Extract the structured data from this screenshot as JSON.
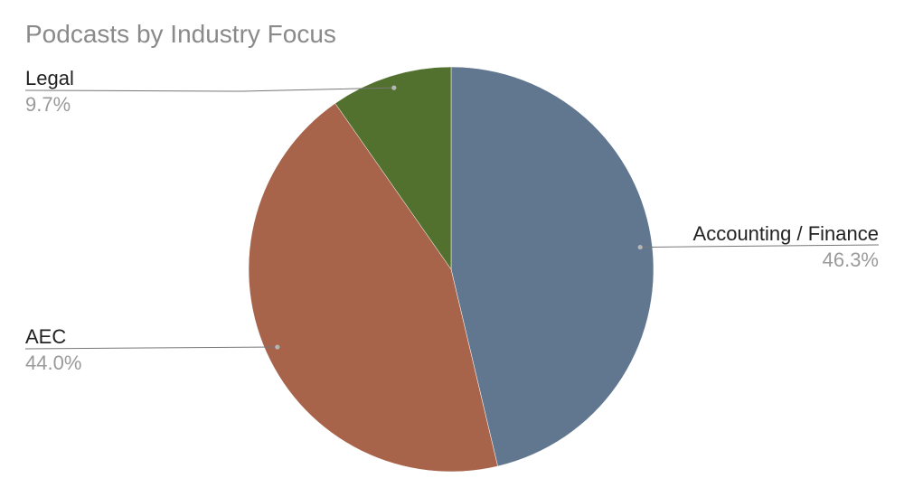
{
  "chart_data": {
    "type": "pie",
    "title": "Podcasts by Industry Focus",
    "slices": [
      {
        "label": "Accounting / Finance",
        "value": 46.3,
        "display": "46.3%",
        "color": "#61778f"
      },
      {
        "label": "AEC",
        "value": 44.0,
        "display": "44.0%",
        "color": "#a7644b"
      },
      {
        "label": "Legal",
        "value": 9.7,
        "display": "9.7%",
        "color": "#52712f"
      }
    ],
    "start_angle": "12 o'clock",
    "direction": "clockwise",
    "legend": "none",
    "data_labels": "outside with leader lines"
  }
}
